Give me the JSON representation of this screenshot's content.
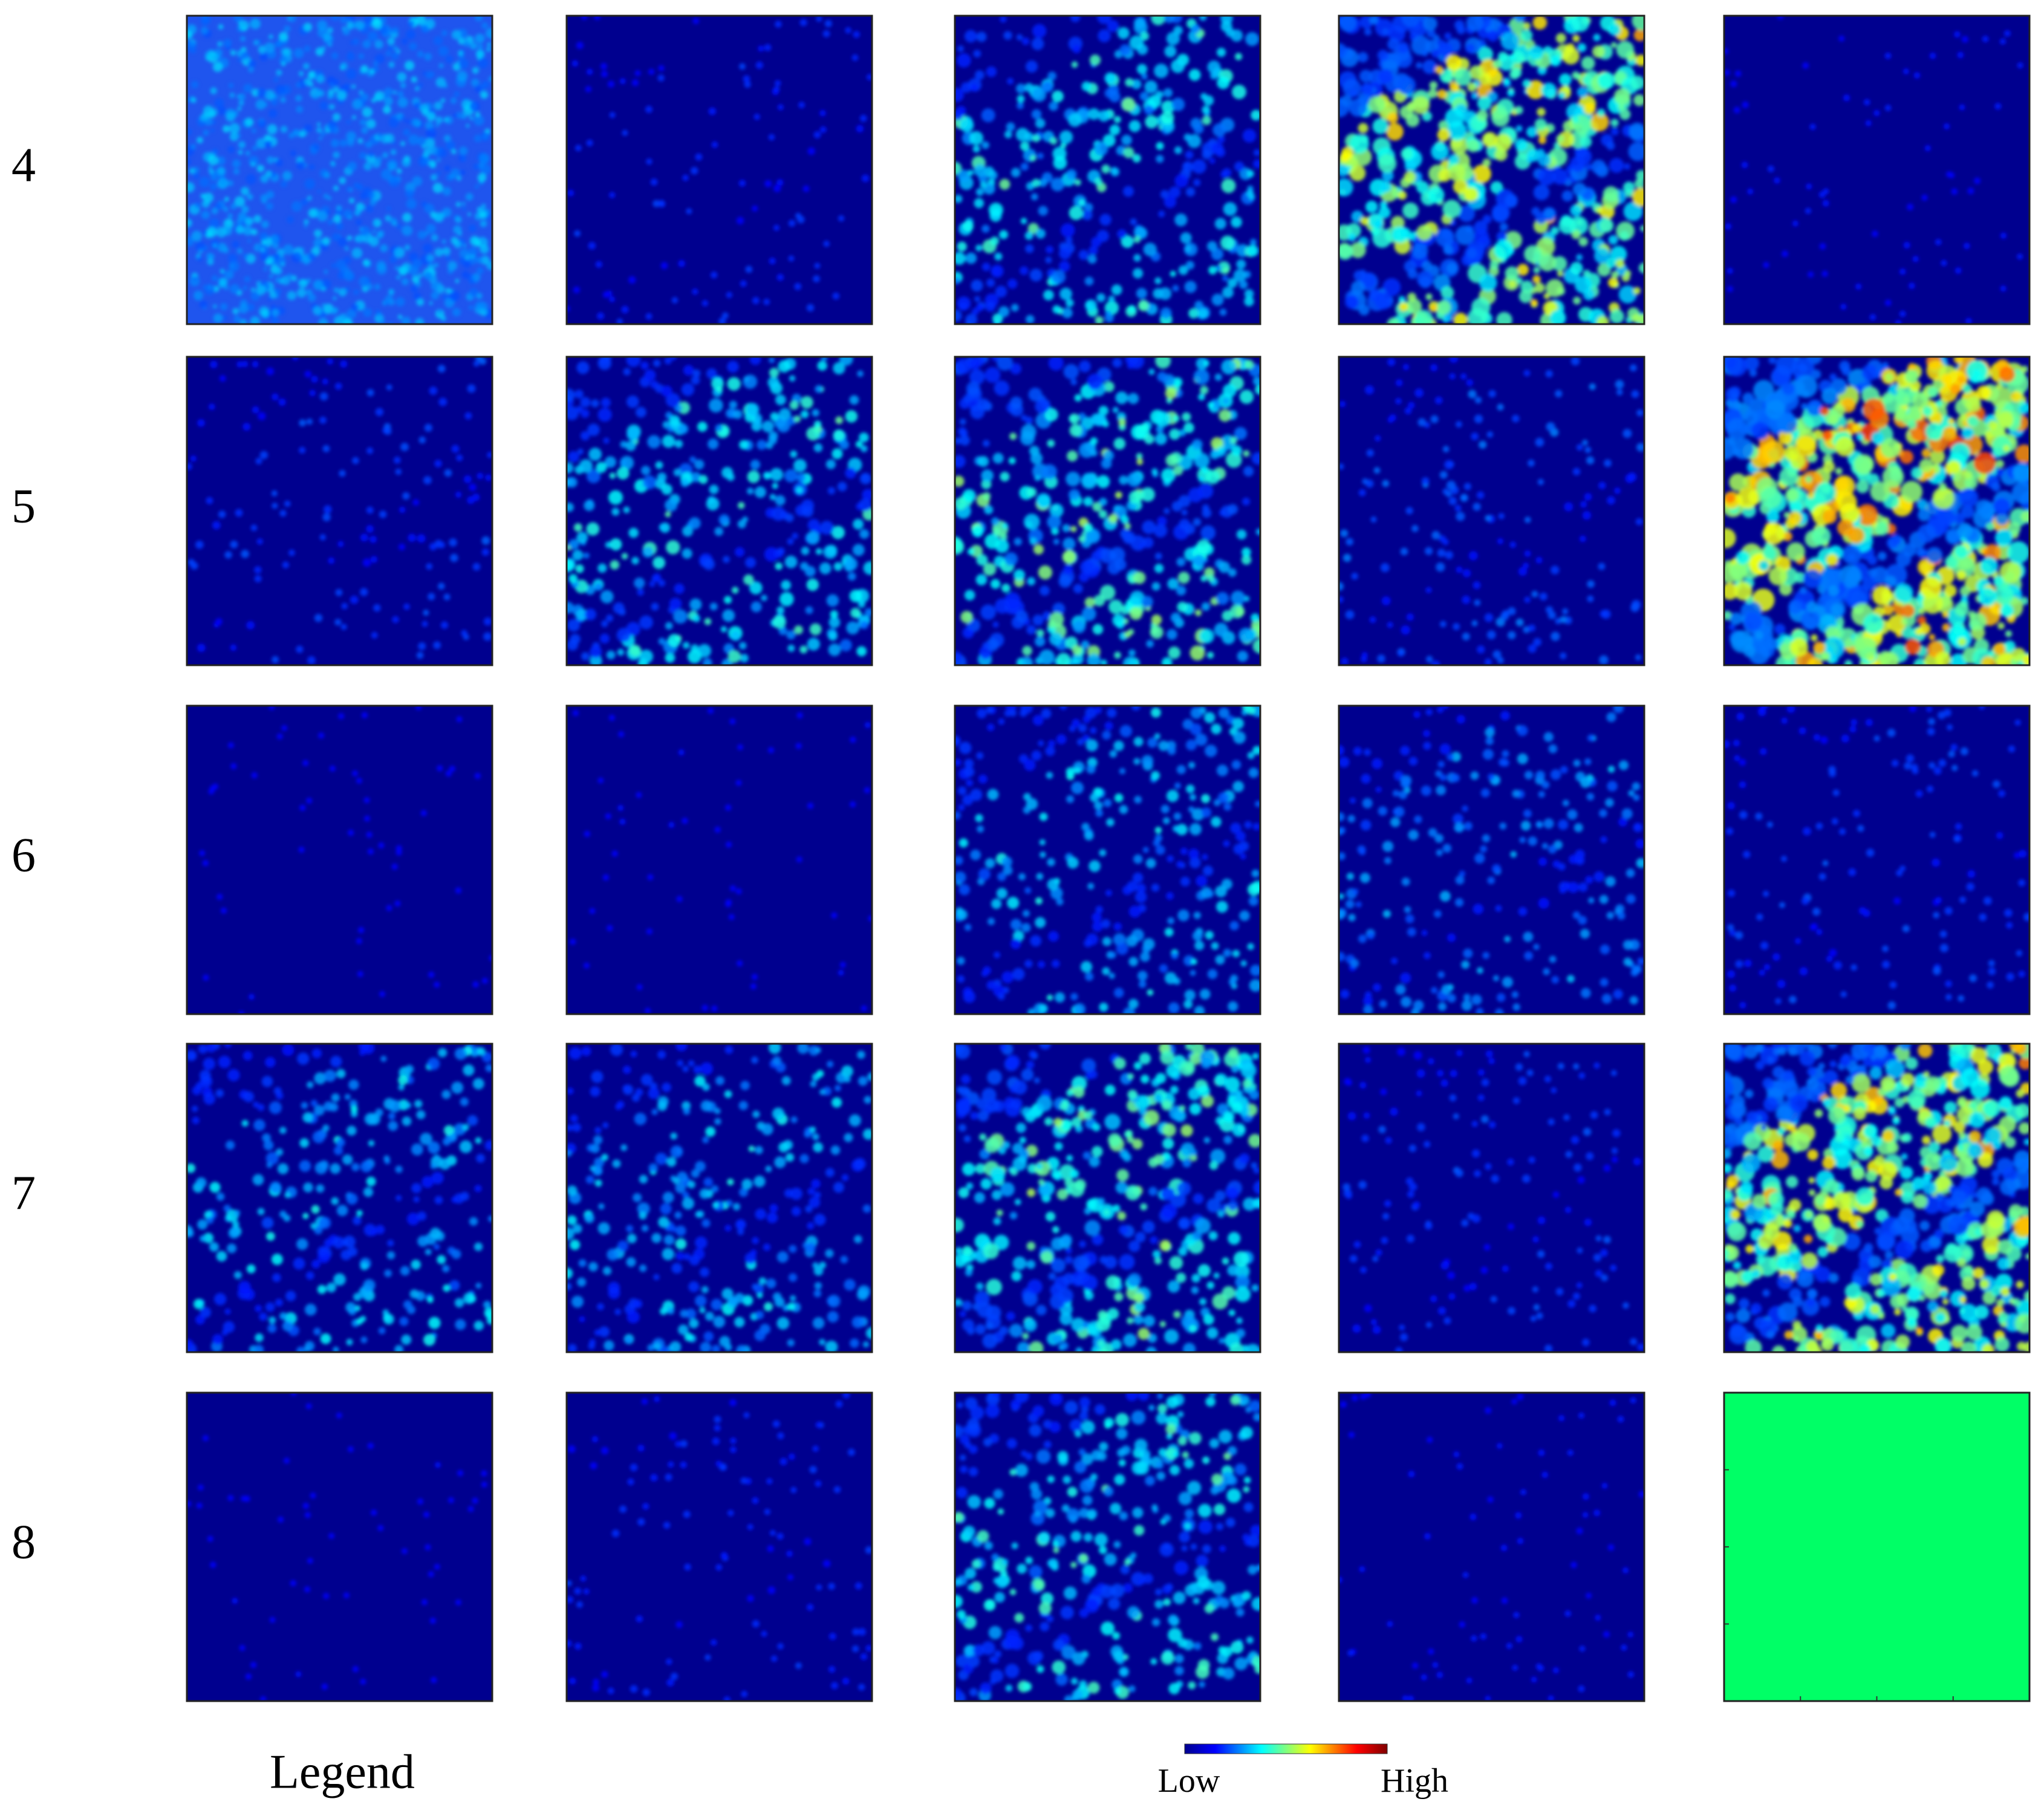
{
  "row_labels": [
    "4",
    "5",
    "6",
    "7",
    "8"
  ],
  "legend": {
    "title": "Legend",
    "low": "Low",
    "high": "High"
  }
}
